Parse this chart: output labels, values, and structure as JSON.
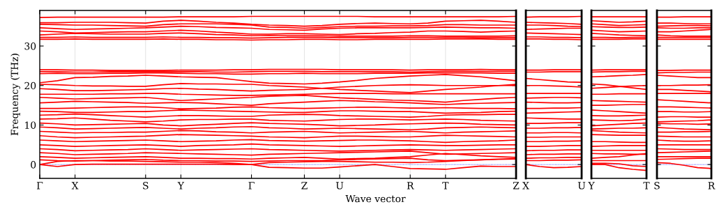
{
  "chart_data": [
    {
      "type": "line",
      "ylabel": "Frequency (THz)",
      "xlabel": "Wave vector",
      "grid": "x",
      "line_style": "solid",
      "ylim": [
        -3.5,
        39
      ],
      "yticks": [
        0,
        10,
        20,
        30
      ],
      "categories": [
        "Γ",
        null,
        "X",
        null,
        null,
        null,
        "S",
        null,
        "Y",
        null,
        null,
        null,
        "Γ",
        null,
        null,
        "Z",
        null,
        "U",
        null,
        null,
        null,
        "R",
        null,
        "T",
        null,
        null,
        null,
        "Z"
      ],
      "ref_lines": [
        {
          "axis": "y",
          "value": 0,
          "color": "#0000ff",
          "line_style": "dotted"
        }
      ],
      "series": [
        {
          "color": "#ff0000",
          "values": [
            37.2,
            37.3,
            37.3,
            37.3,
            37.3,
            37.3,
            37.3,
            37.3,
            37.4,
            37.4,
            37.4,
            37.4,
            37.5,
            37.5,
            37.5,
            37.5,
            37.5,
            37.5,
            37.5,
            37.4,
            37.4,
            37.4,
            37.4,
            37.4,
            37.4,
            37.4,
            37.4,
            37.5
          ]
        },
        {
          "color": "#ff0000",
          "values": [
            35.9,
            35.9,
            36.0,
            36.0,
            36.0,
            35.9,
            35.8,
            36.3,
            36.5,
            36.3,
            36.0,
            35.8,
            35.5,
            35.3,
            35.2,
            35.0,
            35.2,
            35.5,
            35.7,
            35.8,
            35.7,
            35.6,
            35.8,
            36.3,
            36.4,
            36.5,
            36.3,
            36.0
          ]
        },
        {
          "color": "#ff0000",
          "values": [
            35.5,
            35.4,
            35.3,
            35.3,
            35.2,
            35.1,
            35.0,
            35.4,
            35.6,
            35.6,
            35.6,
            35.5,
            35.3,
            34.8,
            34.7,
            34.5,
            34.7,
            34.9,
            35.0,
            35.0,
            35.1,
            35.1,
            35.2,
            35.4,
            35.4,
            35.3,
            35.3,
            35.3
          ]
        },
        {
          "color": "#ff0000",
          "values": [
            34.6,
            34.4,
            34.2,
            34.3,
            34.4,
            34.5,
            34.6,
            34.8,
            35.0,
            34.9,
            34.7,
            34.6,
            34.5,
            34.2,
            34.1,
            34.0,
            34.3,
            34.5,
            34.6,
            34.6,
            34.6,
            34.6,
            34.7,
            34.8,
            34.7,
            34.6,
            34.6,
            34.5
          ]
        },
        {
          "color": "#ff0000",
          "values": [
            33.8,
            33.6,
            33.3,
            33.4,
            33.5,
            33.6,
            33.6,
            33.8,
            34.0,
            33.8,
            33.5,
            33.3,
            33.0,
            33.0,
            33.1,
            33.1,
            33.0,
            32.9,
            33.1,
            33.2,
            33.4,
            33.5,
            33.8,
            33.8,
            33.7,
            33.5,
            33.7,
            33.8
          ]
        },
        {
          "color": "#ff0000",
          "values": [
            32.8,
            33.0,
            33.2,
            33.1,
            33.0,
            33.0,
            33.0,
            33.2,
            33.3,
            33.1,
            32.9,
            32.8,
            32.6,
            32.7,
            32.6,
            32.6,
            32.6,
            32.5,
            32.5,
            32.5,
            32.5,
            32.6,
            32.6,
            32.5,
            32.5,
            32.5,
            32.5,
            32.6
          ]
        },
        {
          "color": "#ff0000",
          "values": [
            32.2,
            32.2,
            32.3,
            32.2,
            32.2,
            32.2,
            32.2,
            32.3,
            32.2,
            32.2,
            32.1,
            32.1,
            32.0,
            32.1,
            32.2,
            32.2,
            32.2,
            32.1,
            32.1,
            32.1,
            32.1,
            32.2,
            32.2,
            32.2,
            32.2,
            32.1,
            32.1,
            32.1
          ]
        },
        {
          "color": "#ff0000",
          "values": [
            31.7,
            31.7,
            31.8,
            31.7,
            31.7,
            31.7,
            31.7,
            31.8,
            31.7,
            31.7,
            31.6,
            31.6,
            31.5,
            31.6,
            31.6,
            31.7,
            31.7,
            31.6,
            31.6,
            31.7,
            31.7,
            31.7,
            31.7,
            31.8,
            31.8,
            31.8,
            31.7,
            31.7
          ]
        },
        {
          "color": "#ff0000",
          "values": [
            24.0,
            24.0,
            23.9,
            23.9,
            23.8,
            23.8,
            23.8,
            23.8,
            23.9,
            23.9,
            23.9,
            24.0,
            24.0,
            24.1,
            24.1,
            24.1,
            24.1,
            24.0,
            24.0,
            24.0,
            24.0,
            23.9,
            24.0,
            24.0,
            24.0,
            24.1,
            24.0,
            24.0
          ]
        },
        {
          "color": "#ff0000",
          "values": [
            23.5,
            23.5,
            23.4,
            23.4,
            23.5,
            23.5,
            23.5,
            23.5,
            23.5,
            23.5,
            23.4,
            23.4,
            23.5,
            23.6,
            23.6,
            23.6,
            23.5,
            23.5,
            23.5,
            23.5,
            23.5,
            23.4,
            23.5,
            23.6,
            23.6,
            23.6,
            23.6,
            23.6
          ]
        },
        {
          "color": "#ff0000",
          "values": [
            23.0,
            23.1,
            23.0,
            23.0,
            23.1,
            23.1,
            23.2,
            23.2,
            23.1,
            23.0,
            23.0,
            22.9,
            22.9,
            23.0,
            23.0,
            23.1,
            23.0,
            23.0,
            23.0,
            23.1,
            23.1,
            23.1,
            23.2,
            23.2,
            23.2,
            23.2,
            23.1,
            23.1
          ]
        },
        {
          "color": "#ff0000",
          "values": [
            20.7,
            21.2,
            22.0,
            22.1,
            22.3,
            22.4,
            22.6,
            22.4,
            22.2,
            22.1,
            22.0,
            21.5,
            21.0,
            20.6,
            20.5,
            20.4,
            20.6,
            20.9,
            21.3,
            21.8,
            22.1,
            22.4,
            22.6,
            22.8,
            22.5,
            22.2,
            21.7,
            21.2
          ]
        },
        {
          "color": "#ff0000",
          "values": [
            20.3,
            20.2,
            20.0,
            19.9,
            19.9,
            19.8,
            19.8,
            20.2,
            20.5,
            20.4,
            20.4,
            20.3,
            20.3,
            20.0,
            19.8,
            19.6,
            19.3,
            19.0,
            18.8,
            18.6,
            18.4,
            18.2,
            18.6,
            19.0,
            19.3,
            19.6,
            20.0,
            20.3
          ]
        },
        {
          "color": "#ff0000",
          "values": [
            19.2,
            19.0,
            18.7,
            18.7,
            18.8,
            18.9,
            19.0,
            19.2,
            19.3,
            19.1,
            19.0,
            18.8,
            18.6,
            18.8,
            18.9,
            19.0,
            19.3,
            19.6,
            19.8,
            20.0,
            20.1,
            20.2,
            20.1,
            20.0,
            20.0,
            20.0,
            20.0,
            20.0
          ]
        },
        {
          "color": "#ff0000",
          "values": [
            17.8,
            17.8,
            17.8,
            17.8,
            17.9,
            17.9,
            18.0,
            18.0,
            17.8,
            17.7,
            17.6,
            17.5,
            17.5,
            17.6,
            17.7,
            17.8,
            17.9,
            18.0,
            18.0,
            18.0,
            17.9,
            17.9,
            17.9,
            17.9,
            17.9,
            17.9,
            17.9,
            17.9
          ]
        },
        {
          "color": "#ff0000",
          "values": [
            17.0,
            16.8,
            16.6,
            16.7,
            16.8,
            16.9,
            17.0,
            16.6,
            16.2,
            16.4,
            16.6,
            16.8,
            17.0,
            17.3,
            17.4,
            17.5,
            17.2,
            16.9,
            16.7,
            16.5,
            16.3,
            16.2,
            16.0,
            15.8,
            16.2,
            16.5,
            16.8,
            17.0
          ]
        },
        {
          "color": "#ff0000",
          "values": [
            15.6,
            15.8,
            16.0,
            15.9,
            15.8,
            15.7,
            15.5,
            15.6,
            15.7,
            15.6,
            15.4,
            15.2,
            15.0,
            15.4,
            15.6,
            15.8,
            16.0,
            16.2,
            16.1,
            15.9,
            15.8,
            15.6,
            15.4,
            15.2,
            15.4,
            15.5,
            15.6,
            15.7
          ]
        },
        {
          "color": "#ff0000",
          "values": [
            14.2,
            14.2,
            14.3,
            14.4,
            14.5,
            14.6,
            14.6,
            14.4,
            14.1,
            14.2,
            14.3,
            14.5,
            14.6,
            14.4,
            14.3,
            14.2,
            14.3,
            14.4,
            14.5,
            14.5,
            14.4,
            14.3,
            14.3,
            14.4,
            14.3,
            14.2,
            14.2,
            14.1
          ]
        },
        {
          "color": "#ff0000",
          "values": [
            13.5,
            13.4,
            13.2,
            13.2,
            13.3,
            13.4,
            13.4,
            13.6,
            13.8,
            13.7,
            13.6,
            13.5,
            13.4,
            13.3,
            13.2,
            13.2,
            13.4,
            13.6,
            13.6,
            13.5,
            13.4,
            13.4,
            13.2,
            13.0,
            13.1,
            13.2,
            13.4,
            13.5
          ]
        },
        {
          "color": "#ff0000",
          "values": [
            12.5,
            12.6,
            12.8,
            12.6,
            12.4,
            12.2,
            12.0,
            12.2,
            12.4,
            12.4,
            12.3,
            12.2,
            12.2,
            12.5,
            12.6,
            12.7,
            12.6,
            12.4,
            12.3,
            12.2,
            12.1,
            12.0,
            12.2,
            12.5,
            12.6,
            12.6,
            12.7,
            12.7
          ]
        },
        {
          "color": "#ff0000",
          "values": [
            11.5,
            11.6,
            11.8,
            11.5,
            11.2,
            11.0,
            10.8,
            11.0,
            11.3,
            11.4,
            11.4,
            11.5,
            11.5,
            11.2,
            11.1,
            11.0,
            11.2,
            11.4,
            11.5,
            11.5,
            11.4,
            11.3,
            11.4,
            11.5,
            11.4,
            11.2,
            11.1,
            11.0
          ]
        },
        {
          "color": "#ff0000",
          "values": [
            10.5,
            10.3,
            10.0,
            10.1,
            10.2,
            10.3,
            10.4,
            10.0,
            9.8,
            10.0,
            10.2,
            10.4,
            10.6,
            10.4,
            10.3,
            10.2,
            10.0,
            9.8,
            9.9,
            10.0,
            10.2,
            10.3,
            10.4,
            10.5,
            10.4,
            10.2,
            10.1,
            10.0
          ]
        },
        {
          "color": "#ff0000",
          "values": [
            9.5,
            9.3,
            9.0,
            9.1,
            9.2,
            9.3,
            9.4,
            9.2,
            9.0,
            9.2,
            9.3,
            9.5,
            9.6,
            9.3,
            9.2,
            9.0,
            9.1,
            9.2,
            9.1,
            9.0,
            8.9,
            8.8,
            9.0,
            9.3,
            9.4,
            9.5,
            9.4,
            9.3
          ]
        },
        {
          "color": "#ff0000",
          "values": [
            8.4,
            8.2,
            8.0,
            8.1,
            8.1,
            8.2,
            8.2,
            8.4,
            8.6,
            8.5,
            8.3,
            8.2,
            8.0,
            8.2,
            8.3,
            8.4,
            8.2,
            8.0,
            8.1,
            8.2,
            8.3,
            8.4,
            8.2,
            8.0,
            8.2,
            8.3,
            8.4,
            8.5
          ]
        },
        {
          "color": "#ff0000",
          "values": [
            7.3,
            7.0,
            6.8,
            6.9,
            7.0,
            7.1,
            7.2,
            7.4,
            7.6,
            7.5,
            7.4,
            7.3,
            7.2,
            7.0,
            6.9,
            6.8,
            7.0,
            7.2,
            7.2,
            7.1,
            7.0,
            7.0,
            7.2,
            7.4,
            7.3,
            7.2,
            7.1,
            7.0
          ]
        },
        {
          "color": "#ff0000",
          "values": [
            6.2,
            6.0,
            5.8,
            5.9,
            6.0,
            6.1,
            6.2,
            6.0,
            5.8,
            5.9,
            6.0,
            6.2,
            6.3,
            6.1,
            6.0,
            5.9,
            6.0,
            6.1,
            6.2,
            6.2,
            6.1,
            6.0,
            5.8,
            5.6,
            5.8,
            5.9,
            6.0,
            6.2
          ]
        },
        {
          "color": "#ff0000",
          "values": [
            5.0,
            4.8,
            4.6,
            4.7,
            4.8,
            4.9,
            5.0,
            4.8,
            4.6,
            4.8,
            4.9,
            5.0,
            5.2,
            5.0,
            4.9,
            4.8,
            4.7,
            4.6,
            4.7,
            4.8,
            4.9,
            5.0,
            4.9,
            4.8,
            4.8,
            4.9,
            5.0,
            5.0
          ]
        },
        {
          "color": "#ff0000",
          "values": [
            4.0,
            3.8,
            3.5,
            3.6,
            3.7,
            3.8,
            4.0,
            3.8,
            3.6,
            3.7,
            3.8,
            3.9,
            4.0,
            3.8,
            3.7,
            3.6,
            3.5,
            3.4,
            3.5,
            3.6,
            3.7,
            3.8,
            3.7,
            3.6,
            3.7,
            3.8,
            3.9,
            4.0
          ]
        },
        {
          "color": "#ff0000",
          "values": [
            3.0,
            2.8,
            2.5,
            2.6,
            2.7,
            2.8,
            3.0,
            2.9,
            2.8,
            2.7,
            2.6,
            2.5,
            2.4,
            2.6,
            2.7,
            2.8,
            2.9,
            3.0,
            3.1,
            3.2,
            3.3,
            3.4,
            3.0,
            2.6,
            2.7,
            2.8,
            2.9,
            3.0
          ]
        },
        {
          "color": "#ff0000",
          "values": [
            2.0,
            1.8,
            1.6,
            1.7,
            1.8,
            1.9,
            2.0,
            1.8,
            1.6,
            1.6,
            1.5,
            1.5,
            1.4,
            1.6,
            1.7,
            1.8,
            1.6,
            1.4,
            1.5,
            1.6,
            1.8,
            2.0,
            2.4,
            2.8,
            2.5,
            2.2,
            2.0,
            1.8
          ]
        },
        {
          "color": "#ff0000",
          "values": [
            1.2,
            1.0,
            0.9,
            1.0,
            1.1,
            1.2,
            1.3,
            1.1,
            1.0,
            1.0,
            0.9,
            0.9,
            0.8,
            0.9,
            1.0,
            1.0,
            1.0,
            1.2,
            1.3,
            1.4,
            1.5,
            1.6,
            1.2,
            1.0,
            1.1,
            1.2,
            1.3,
            1.4
          ]
        },
        {
          "color": "#ff0000",
          "values": [
            0.0,
            0.8,
            1.0,
            1.0,
            0.9,
            0.9,
            0.8,
            0.7,
            0.6,
            0.6,
            0.5,
            0.3,
            0.0,
            0.5,
            0.6,
            0.7,
            0.8,
            0.8,
            0.7,
            0.6,
            0.6,
            0.5,
            0.6,
            0.8,
            1.0,
            1.2,
            1.4,
            1.5
          ]
        },
        {
          "color": "#ff0000",
          "values": [
            0.0,
            -0.5,
            0.0,
            0.1,
            0.1,
            0.1,
            0.1,
            0.1,
            0.1,
            0.1,
            0.1,
            0.0,
            0.0,
            -0.7,
            -0.8,
            -0.9,
            -0.9,
            -0.6,
            -0.3,
            0.0,
            -0.5,
            -1.0,
            -1.1,
            -1.2,
            -0.8,
            -0.4,
            -0.5,
            -0.5
          ]
        }
      ]
    },
    {
      "type": "line",
      "line_style": "solid",
      "tick_labels": "x",
      "ylim": [
        -3.5,
        39
      ],
      "yticks": [
        0,
        10,
        20,
        30
      ],
      "categories": [
        "X",
        null,
        null,
        null,
        "U"
      ],
      "ref_lines": [
        {
          "axis": "y",
          "value": 0,
          "color": "#0000ff",
          "line_style": "dotted"
        }
      ],
      "series": [
        {
          "color": "#ff0000",
          "values": [
            37.3,
            37.4,
            37.4,
            37.4,
            37.5
          ]
        },
        {
          "color": "#ff0000",
          "values": [
            36.0,
            35.9,
            35.8,
            35.7,
            35.5
          ]
        },
        {
          "color": "#ff0000",
          "values": [
            35.3,
            35.3,
            35.2,
            35.0,
            34.9
          ]
        },
        {
          "color": "#ff0000",
          "values": [
            34.2,
            34.3,
            34.4,
            34.5,
            34.5
          ]
        },
        {
          "color": "#ff0000",
          "values": [
            33.3,
            33.2,
            33.1,
            33.0,
            32.9
          ]
        },
        {
          "color": "#ff0000",
          "values": [
            32.3,
            32.3,
            32.2,
            32.2,
            32.1
          ]
        },
        {
          "color": "#ff0000",
          "values": [
            31.8,
            31.8,
            31.7,
            31.7,
            31.6
          ]
        },
        {
          "color": "#ff0000",
          "values": [
            23.9,
            23.9,
            24.0,
            24.0,
            24.0
          ]
        },
        {
          "color": "#ff0000",
          "values": [
            23.4,
            23.4,
            23.5,
            23.5,
            23.5
          ]
        },
        {
          "color": "#ff0000",
          "values": [
            21.8,
            21.5,
            21.2,
            20.9,
            20.8
          ]
        },
        {
          "color": "#ff0000",
          "values": [
            20.0,
            20.0,
            19.9,
            19.8,
            19.6
          ]
        },
        {
          "color": "#ff0000",
          "values": [
            18.0,
            18.0,
            18.0,
            18.0,
            18.0
          ]
        },
        {
          "color": "#ff0000",
          "values": [
            16.8,
            16.9,
            17.0,
            17.0,
            16.9
          ]
        },
        {
          "color": "#ff0000",
          "values": [
            15.8,
            15.7,
            15.6,
            15.6,
            15.7
          ]
        },
        {
          "color": "#ff0000",
          "values": [
            14.2,
            14.2,
            14.3,
            14.3,
            14.4
          ]
        },
        {
          "color": "#ff0000",
          "values": [
            13.0,
            13.1,
            13.2,
            13.3,
            13.4
          ]
        },
        {
          "color": "#ff0000",
          "values": [
            11.8,
            11.7,
            11.6,
            11.5,
            11.5
          ]
        },
        {
          "color": "#ff0000",
          "values": [
            10.4,
            10.4,
            10.5,
            10.6,
            10.6
          ]
        },
        {
          "color": "#ff0000",
          "values": [
            9.2,
            9.2,
            9.3,
            9.3,
            9.4
          ]
        },
        {
          "color": "#ff0000",
          "values": [
            8.0,
            8.0,
            8.1,
            8.1,
            8.0
          ]
        },
        {
          "color": "#ff0000",
          "values": [
            6.9,
            6.9,
            7.0,
            7.0,
            7.0
          ]
        },
        {
          "color": "#ff0000",
          "values": [
            5.8,
            5.8,
            5.9,
            5.9,
            6.0
          ]
        },
        {
          "color": "#ff0000",
          "values": [
            4.6,
            4.6,
            4.7,
            4.8,
            4.8
          ]
        },
        {
          "color": "#ff0000",
          "values": [
            3.5,
            3.6,
            3.6,
            3.7,
            3.7
          ]
        },
        {
          "color": "#ff0000",
          "values": [
            2.5,
            2.6,
            2.6,
            2.7,
            2.7
          ]
        },
        {
          "color": "#ff0000",
          "values": [
            1.6,
            1.7,
            1.7,
            1.8,
            1.8
          ]
        },
        {
          "color": "#ff0000",
          "values": [
            1.0,
            1.0,
            1.1,
            1.1,
            1.2
          ]
        },
        {
          "color": "#ff0000",
          "values": [
            0.0,
            -0.5,
            -0.8,
            -0.7,
            -0.5
          ]
        }
      ]
    },
    {
      "type": "line",
      "line_style": "solid",
      "tick_labels": "x",
      "ylim": [
        -3.5,
        39
      ],
      "yticks": [
        0,
        10,
        20,
        30
      ],
      "categories": [
        "Y",
        null,
        null,
        null,
        "T"
      ],
      "ref_lines": [
        {
          "axis": "y",
          "value": 0,
          "color": "#0000ff",
          "line_style": "dotted"
        }
      ],
      "series": [
        {
          "color": "#ff0000",
          "values": [
            37.4,
            37.4,
            37.4,
            37.4,
            37.4
          ]
        },
        {
          "color": "#ff0000",
          "values": [
            36.4,
            36.2,
            36.0,
            36.1,
            36.3
          ]
        },
        {
          "color": "#ff0000",
          "values": [
            35.6,
            35.4,
            35.2,
            35.3,
            35.4
          ]
        },
        {
          "color": "#ff0000",
          "values": [
            34.9,
            34.8,
            34.7,
            34.7,
            34.8
          ]
        },
        {
          "color": "#ff0000",
          "values": [
            34.0,
            33.8,
            33.6,
            33.7,
            33.8
          ]
        },
        {
          "color": "#ff0000",
          "values": [
            33.2,
            33.0,
            32.8,
            32.7,
            32.6
          ]
        },
        {
          "color": "#ff0000",
          "values": [
            32.2,
            32.2,
            32.1,
            32.2,
            32.2
          ]
        },
        {
          "color": "#ff0000",
          "values": [
            31.7,
            31.7,
            31.7,
            31.8,
            31.8
          ]
        },
        {
          "color": "#ff0000",
          "values": [
            23.9,
            24.0,
            24.0,
            24.0,
            24.0
          ]
        },
        {
          "color": "#ff0000",
          "values": [
            23.4,
            23.5,
            23.5,
            23.6,
            23.6
          ]
        },
        {
          "color": "#ff0000",
          "values": [
            22.2,
            22.3,
            22.5,
            22.6,
            22.8
          ]
        },
        {
          "color": "#ff0000",
          "values": [
            20.4,
            20.2,
            19.8,
            19.4,
            19.0
          ]
        },
        {
          "color": "#ff0000",
          "values": [
            19.3,
            19.5,
            19.7,
            19.9,
            20.0
          ]
        },
        {
          "color": "#ff0000",
          "values": [
            17.8,
            17.8,
            17.9,
            17.9,
            17.9
          ]
        },
        {
          "color": "#ff0000",
          "values": [
            16.2,
            16.1,
            16.0,
            15.9,
            15.8
          ]
        },
        {
          "color": "#ff0000",
          "values": [
            15.0,
            15.0,
            15.1,
            15.2,
            15.2
          ]
        },
        {
          "color": "#ff0000",
          "values": [
            13.8,
            13.6,
            13.4,
            13.2,
            13.0
          ]
        },
        {
          "color": "#ff0000",
          "values": [
            12.4,
            12.3,
            12.3,
            12.4,
            12.5
          ]
        },
        {
          "color": "#ff0000",
          "values": [
            11.3,
            11.2,
            11.1,
            11.2,
            11.5
          ]
        },
        {
          "color": "#ff0000",
          "values": [
            9.8,
            10.0,
            10.2,
            10.4,
            10.5
          ]
        },
        {
          "color": "#ff0000",
          "values": [
            9.0,
            9.1,
            9.2,
            9.2,
            9.3
          ]
        },
        {
          "color": "#ff0000",
          "values": [
            8.6,
            8.4,
            8.2,
            8.1,
            8.0
          ]
        },
        {
          "color": "#ff0000",
          "values": [
            7.6,
            7.5,
            7.4,
            7.4,
            7.4
          ]
        },
        {
          "color": "#ff0000",
          "values": [
            5.8,
            5.8,
            5.7,
            5.6,
            5.6
          ]
        },
        {
          "color": "#ff0000",
          "values": [
            4.6,
            4.7,
            4.8,
            4.8,
            4.8
          ]
        },
        {
          "color": "#ff0000",
          "values": [
            3.6,
            3.6,
            3.6,
            3.6,
            3.6
          ]
        },
        {
          "color": "#ff0000",
          "values": [
            2.8,
            2.7,
            2.7,
            2.6,
            2.6
          ]
        },
        {
          "color": "#ff0000",
          "values": [
            1.6,
            1.8,
            2.0,
            2.4,
            2.8
          ]
        },
        {
          "color": "#ff0000",
          "values": [
            1.0,
            1.0,
            1.0,
            1.0,
            1.0
          ]
        },
        {
          "color": "#ff0000",
          "values": [
            0.3,
            0.3,
            0.2,
            -0.3,
            -0.5
          ]
        },
        {
          "color": "#ff0000",
          "values": [
            0.0,
            0.0,
            -0.8,
            -1.2,
            -1.5
          ]
        }
      ]
    },
    {
      "type": "line",
      "line_style": "solid",
      "tick_labels": "x",
      "ylim": [
        -3.5,
        39
      ],
      "yticks": [
        0,
        10,
        20,
        30
      ],
      "categories": [
        "S",
        null,
        null,
        null,
        "R"
      ],
      "ref_lines": [
        {
          "axis": "y",
          "value": 0,
          "color": "#0000ff",
          "line_style": "dotted"
        }
      ],
      "series": [
        {
          "color": "#ff0000",
          "values": [
            37.3,
            37.3,
            37.4,
            37.4,
            37.4
          ]
        },
        {
          "color": "#ff0000",
          "values": [
            35.8,
            35.8,
            35.7,
            35.6,
            35.6
          ]
        },
        {
          "color": "#ff0000",
          "values": [
            35.0,
            35.1,
            35.2,
            35.2,
            35.1
          ]
        },
        {
          "color": "#ff0000",
          "values": [
            34.6,
            34.5,
            34.5,
            34.6,
            34.6
          ]
        },
        {
          "color": "#ff0000",
          "values": [
            33.6,
            33.6,
            33.8,
            34.0,
            34.2
          ]
        },
        {
          "color": "#ff0000",
          "values": [
            32.8,
            32.6,
            32.5,
            32.5,
            32.5
          ]
        },
        {
          "color": "#ff0000",
          "values": [
            32.2,
            32.2,
            32.2,
            32.2,
            32.2
          ]
        },
        {
          "color": "#ff0000",
          "values": [
            31.7,
            31.7,
            31.7,
            31.7,
            31.7
          ]
        },
        {
          "color": "#ff0000",
          "values": [
            23.8,
            23.8,
            23.9,
            23.9,
            23.9
          ]
        },
        {
          "color": "#ff0000",
          "values": [
            23.2,
            23.3,
            23.3,
            23.4,
            23.4
          ]
        },
        {
          "color": "#ff0000",
          "values": [
            22.6,
            22.4,
            22.2,
            22.0,
            22.0
          ]
        },
        {
          "color": "#ff0000",
          "values": [
            20.0,
            20.0,
            20.1,
            20.1,
            20.2
          ]
        },
        {
          "color": "#ff0000",
          "values": [
            19.0,
            19.0,
            18.8,
            18.6,
            18.4
          ]
        },
        {
          "color": "#ff0000",
          "values": [
            18.0,
            18.0,
            18.0,
            18.0,
            18.0
          ]
        },
        {
          "color": "#ff0000",
          "values": [
            16.4,
            16.2,
            16.0,
            15.8,
            15.6
          ]
        },
        {
          "color": "#ff0000",
          "values": [
            14.6,
            14.6,
            14.5,
            14.4,
            14.3
          ]
        },
        {
          "color": "#ff0000",
          "values": [
            13.4,
            13.4,
            13.3,
            13.3,
            13.4
          ]
        },
        {
          "color": "#ff0000",
          "values": [
            12.0,
            12.1,
            12.1,
            12.0,
            12.0
          ]
        },
        {
          "color": "#ff0000",
          "values": [
            10.8,
            10.9,
            11.0,
            11.1,
            11.3
          ]
        },
        {
          "color": "#ff0000",
          "values": [
            10.4,
            10.3,
            10.3,
            10.2,
            10.3
          ]
        },
        {
          "color": "#ff0000",
          "values": [
            9.4,
            9.2,
            9.0,
            8.9,
            8.8
          ]
        },
        {
          "color": "#ff0000",
          "values": [
            8.2,
            8.2,
            8.3,
            8.3,
            8.4
          ]
        },
        {
          "color": "#ff0000",
          "values": [
            7.2,
            7.1,
            7.0,
            7.0,
            7.0
          ]
        },
        {
          "color": "#ff0000",
          "values": [
            6.2,
            6.0,
            5.9,
            5.9,
            6.0
          ]
        },
        {
          "color": "#ff0000",
          "values": [
            5.0,
            5.0,
            5.0,
            5.0,
            5.0
          ]
        },
        {
          "color": "#ff0000",
          "values": [
            4.0,
            3.9,
            3.8,
            3.8,
            3.8
          ]
        },
        {
          "color": "#ff0000",
          "values": [
            3.0,
            3.1,
            3.2,
            3.3,
            3.4
          ]
        },
        {
          "color": "#ff0000",
          "values": [
            2.0,
            2.0,
            2.0,
            2.0,
            2.0
          ]
        },
        {
          "color": "#ff0000",
          "values": [
            1.3,
            1.4,
            1.5,
            1.6,
            1.6
          ]
        },
        {
          "color": "#ff0000",
          "values": [
            0.5,
            0.3,
            -0.2,
            -0.8,
            -1.0
          ]
        }
      ]
    }
  ]
}
